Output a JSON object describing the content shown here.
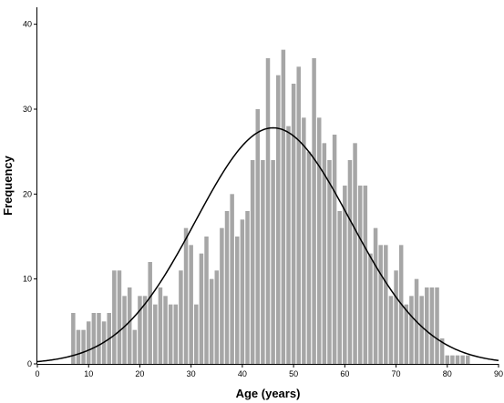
{
  "chart_data": {
    "type": "bar",
    "title": "",
    "xlabel": "Age (years)",
    "ylabel": "Frequency",
    "xlim": [
      0,
      90
    ],
    "ylim": [
      0,
      42
    ],
    "x_ticks": [
      0,
      10,
      20,
      30,
      40,
      50,
      60,
      70,
      80,
      90
    ],
    "y_ticks": [
      0,
      10,
      20,
      30,
      40
    ],
    "grid": false,
    "legend": "none",
    "bar_color": "#a6a6a6",
    "curve_color": "#000000",
    "series": [
      {
        "type": "bar",
        "x": [
          7,
          8,
          9,
          10,
          11,
          12,
          13,
          14,
          15,
          16,
          17,
          18,
          19,
          20,
          21,
          22,
          23,
          24,
          25,
          26,
          27,
          28,
          29,
          30,
          31,
          32,
          33,
          34,
          35,
          36,
          37,
          38,
          39,
          40,
          41,
          42,
          43,
          44,
          45,
          46,
          47,
          48,
          49,
          50,
          51,
          52,
          53,
          54,
          55,
          56,
          57,
          58,
          59,
          60,
          61,
          62,
          63,
          64,
          65,
          66,
          67,
          68,
          69,
          70,
          71,
          72,
          73,
          74,
          75,
          76,
          77,
          78,
          79,
          80,
          81,
          82,
          83,
          84
        ],
        "values": [
          6,
          4,
          4,
          5,
          6,
          6,
          5,
          6,
          11,
          11,
          8,
          9,
          4,
          8,
          8,
          12,
          7,
          9,
          8,
          7,
          7,
          11,
          16,
          14,
          7,
          13,
          15,
          10,
          11,
          16,
          18,
          20,
          15,
          17,
          18,
          24,
          30,
          24,
          36,
          24,
          34,
          37,
          28,
          33,
          35,
          29,
          25,
          36,
          29,
          26,
          24,
          27,
          18,
          21,
          24,
          26,
          21,
          21,
          13,
          16,
          14,
          14,
          8,
          11,
          14,
          7,
          8,
          10,
          8,
          9,
          9,
          9,
          3,
          1,
          1,
          1,
          1,
          1
        ],
        "values_note_omit": true
      },
      {
        "type": "line",
        "curve": "normal",
        "mean": 46,
        "sd": 15.1,
        "peak": 27.8
      }
    ]
  }
}
